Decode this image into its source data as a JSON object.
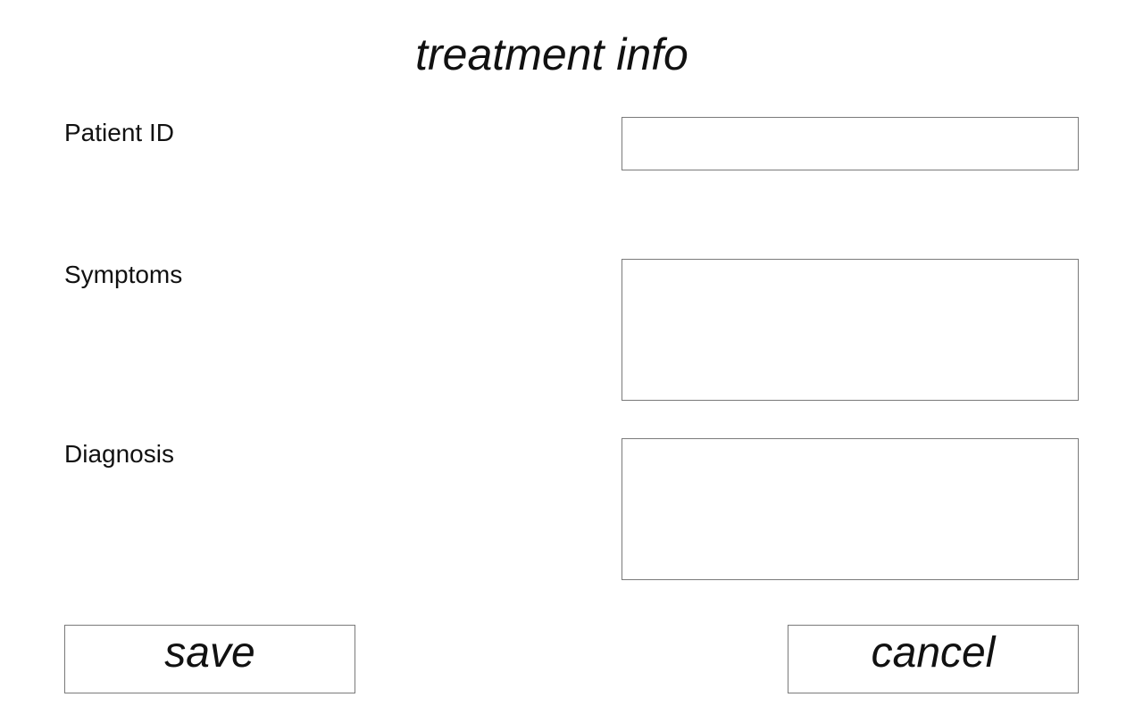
{
  "form": {
    "title": "treatment info",
    "fields": [
      {
        "label": "Patient ID",
        "value": "",
        "placeholder": ""
      },
      {
        "label": "Symptoms",
        "value": "",
        "placeholder": ""
      },
      {
        "label": "Diagnosis",
        "value": "",
        "placeholder": ""
      }
    ]
  },
  "actions": {
    "save_label": "save",
    "cancel_label": "cancel"
  }
}
